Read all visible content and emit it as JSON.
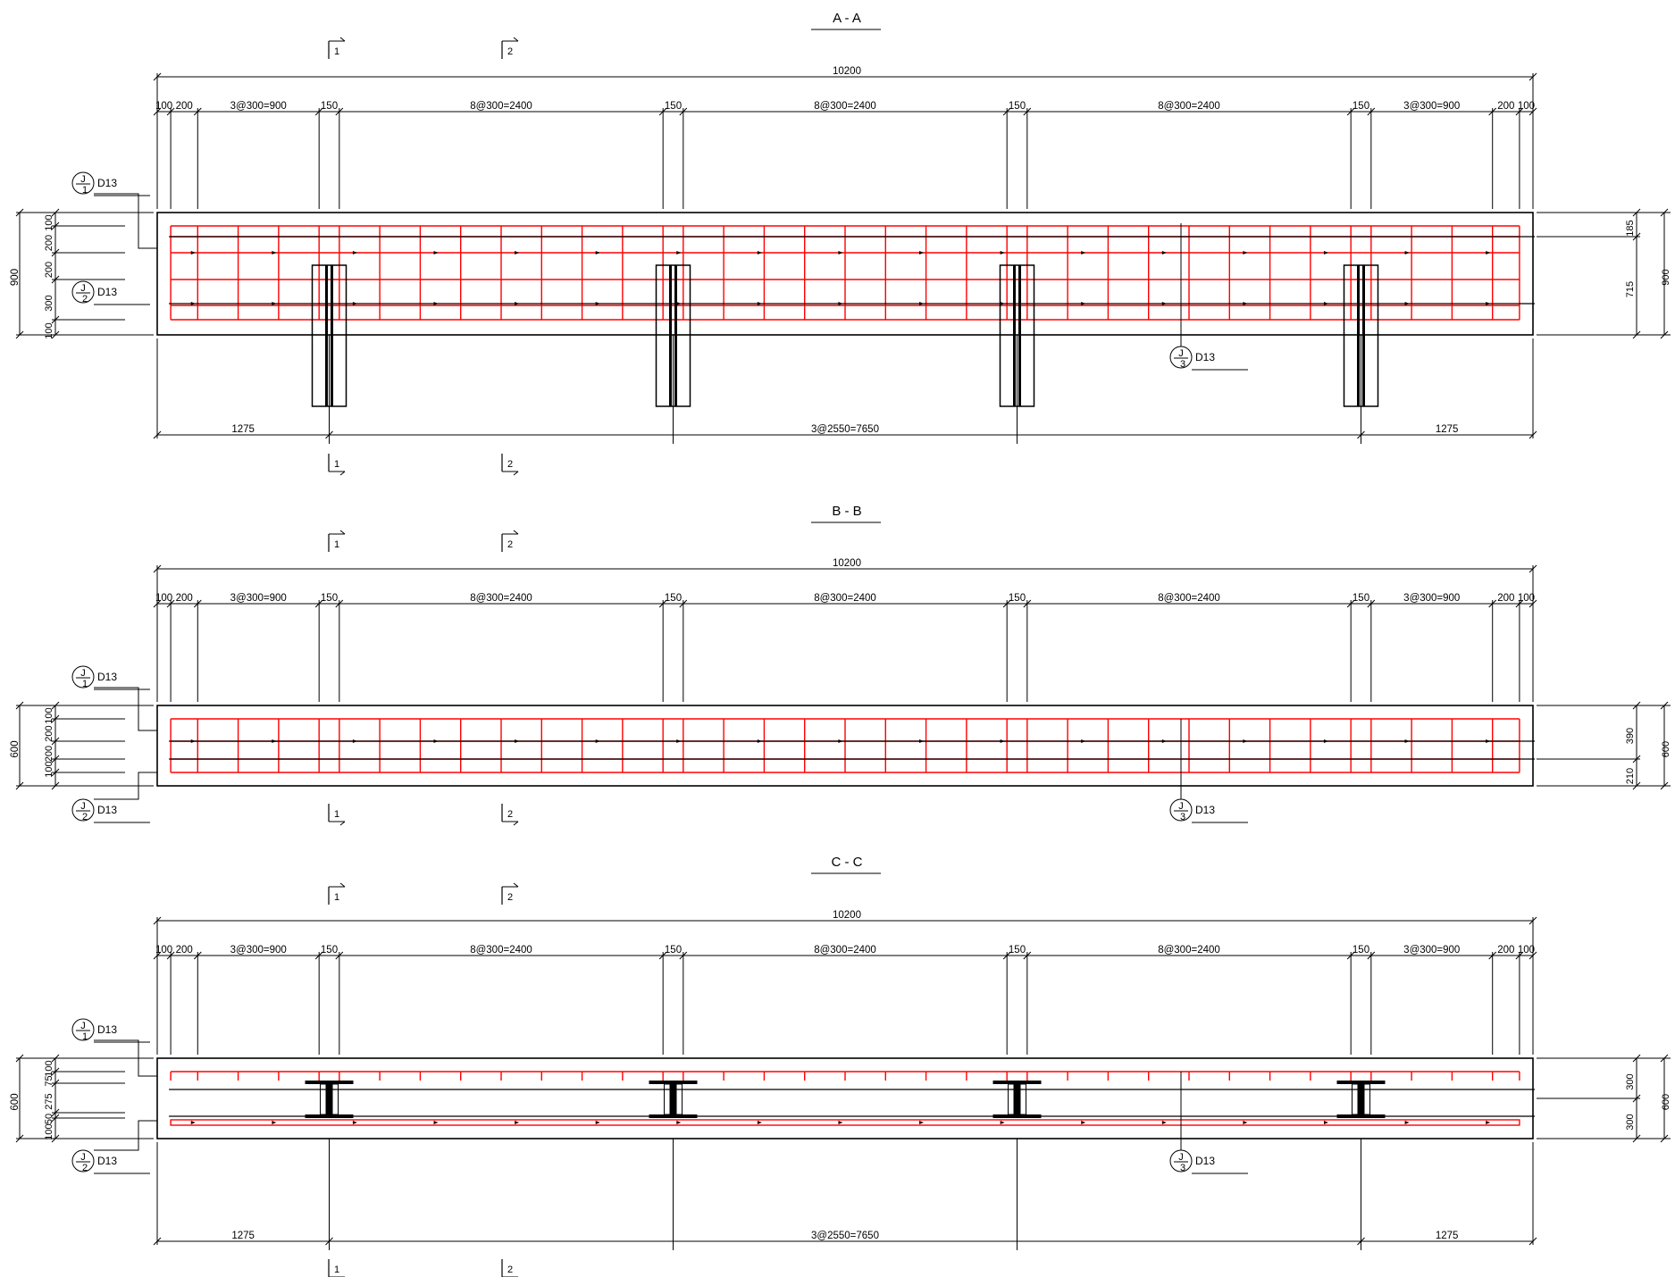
{
  "colors": {
    "line": "#000000",
    "rebar": "#ff0000",
    "background": "#ffffff"
  },
  "icons": {
    "rebar_mark": "circled-j-icon",
    "section_cut": "section-arrow-icon"
  },
  "dims": {
    "total": "10200",
    "cover_l": "100",
    "gap_l": "200",
    "end_l": "3@300=900",
    "w150": "150",
    "mid": "8@300=2400",
    "end_r": "3@300=900",
    "gap_r": "200",
    "cover_r": "100",
    "edge_l": "1275",
    "span": "3@2550=7650",
    "edge_r": "1275"
  },
  "sections": [
    {
      "title": "A - A",
      "height_label": "900",
      "left_dims": [
        "100",
        "200",
        "200",
        "300",
        "100"
      ],
      "right_dims": [
        "185",
        "715"
      ],
      "right_total": "900",
      "marks": [
        {
          "j": "J",
          "sub": "1",
          "dia": "D13"
        },
        {
          "j": "J",
          "sub": "2",
          "dia": "D13"
        },
        {
          "j": "J",
          "sub": "3",
          "dia": "D13"
        }
      ],
      "cuts": [
        "1",
        "2",
        "1",
        "2"
      ]
    },
    {
      "title": "B - B",
      "height_label": "600",
      "left_dims": [
        "100",
        "200",
        "200",
        "100"
      ],
      "right_dims": [
        "390",
        "210"
      ],
      "right_total": "600",
      "marks": [
        {
          "j": "J",
          "sub": "1",
          "dia": "D13"
        },
        {
          "j": "J",
          "sub": "2",
          "dia": "D13"
        },
        {
          "j": "J",
          "sub": "3",
          "dia": "D13"
        }
      ],
      "cuts": [
        "1",
        "2",
        "1",
        "2"
      ]
    },
    {
      "title": "C - C",
      "height_label": "600",
      "left_dims": [
        "100",
        "75",
        "275",
        "50",
        "100"
      ],
      "right_dims": [
        "300",
        "300"
      ],
      "right_total": "600",
      "marks": [
        {
          "j": "J",
          "sub": "1",
          "dia": "D13"
        },
        {
          "j": "J",
          "sub": "2",
          "dia": "D13"
        },
        {
          "j": "J",
          "sub": "3",
          "dia": "D13"
        }
      ],
      "cuts": [
        "1",
        "2",
        "1",
        "2"
      ]
    }
  ]
}
